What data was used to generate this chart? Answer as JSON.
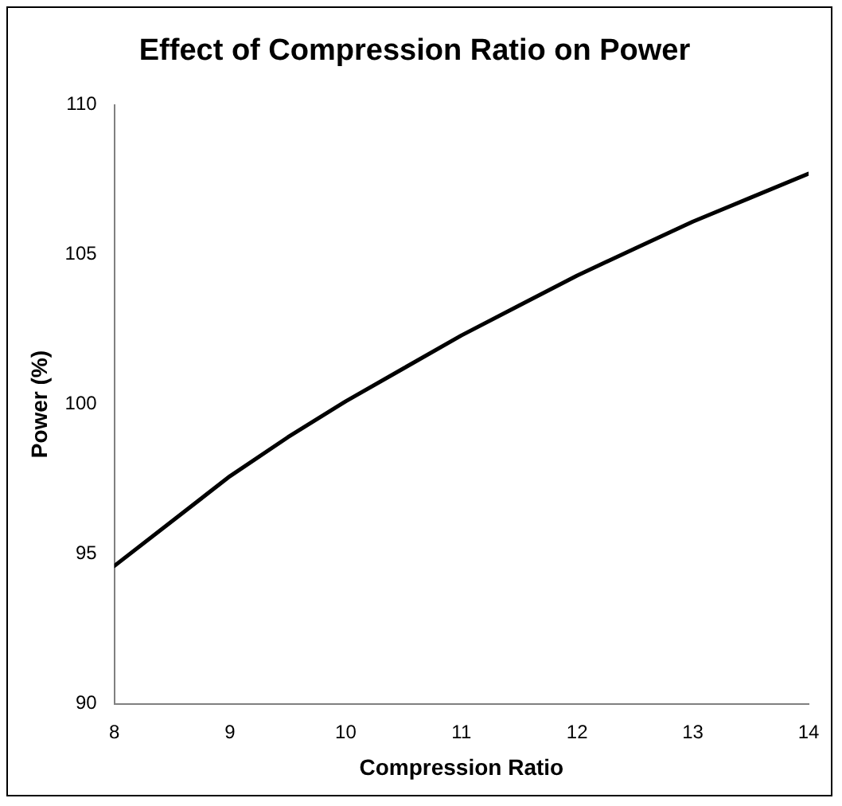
{
  "chart_data": {
    "type": "line",
    "title": "Effect of Compression Ratio on Power",
    "xlabel": "Compression Ratio",
    "ylabel": "Power (%)",
    "x": [
      8,
      8.5,
      9,
      9.5,
      10,
      10.5,
      11,
      11.5,
      12,
      12.5,
      13,
      13.5,
      14
    ],
    "series": [
      {
        "color": "#000000",
        "values": [
          94.6,
          96.1,
          97.6,
          98.9,
          100.1,
          101.2,
          102.3,
          103.3,
          104.3,
          105.2,
          106.1,
          106.9,
          107.7
        ]
      }
    ],
    "xlim": [
      8,
      14
    ],
    "xticks": [
      8,
      9,
      10,
      11,
      12,
      13,
      14
    ],
    "ylim": [
      90,
      110
    ],
    "yticks": [
      90,
      95,
      100,
      105,
      110
    ],
    "grid": false,
    "legend": false,
    "marker": "none",
    "line_style": "solid"
  }
}
